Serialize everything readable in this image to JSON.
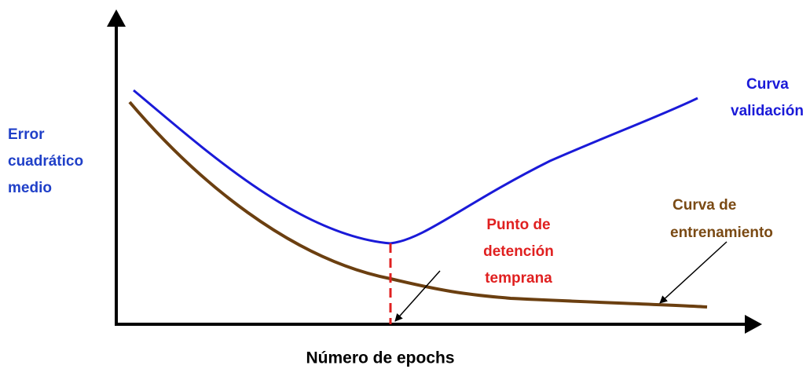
{
  "labels": {
    "y_axis": [
      "Error",
      "cuadrático",
      "medio"
    ],
    "x_axis": "Número de epochs",
    "validation": [
      "Curva",
      "validación"
    ],
    "training": [
      "Curva de",
      "entrenamiento"
    ],
    "early_stop": [
      "Punto de",
      "detención",
      "temprana"
    ]
  }
}
